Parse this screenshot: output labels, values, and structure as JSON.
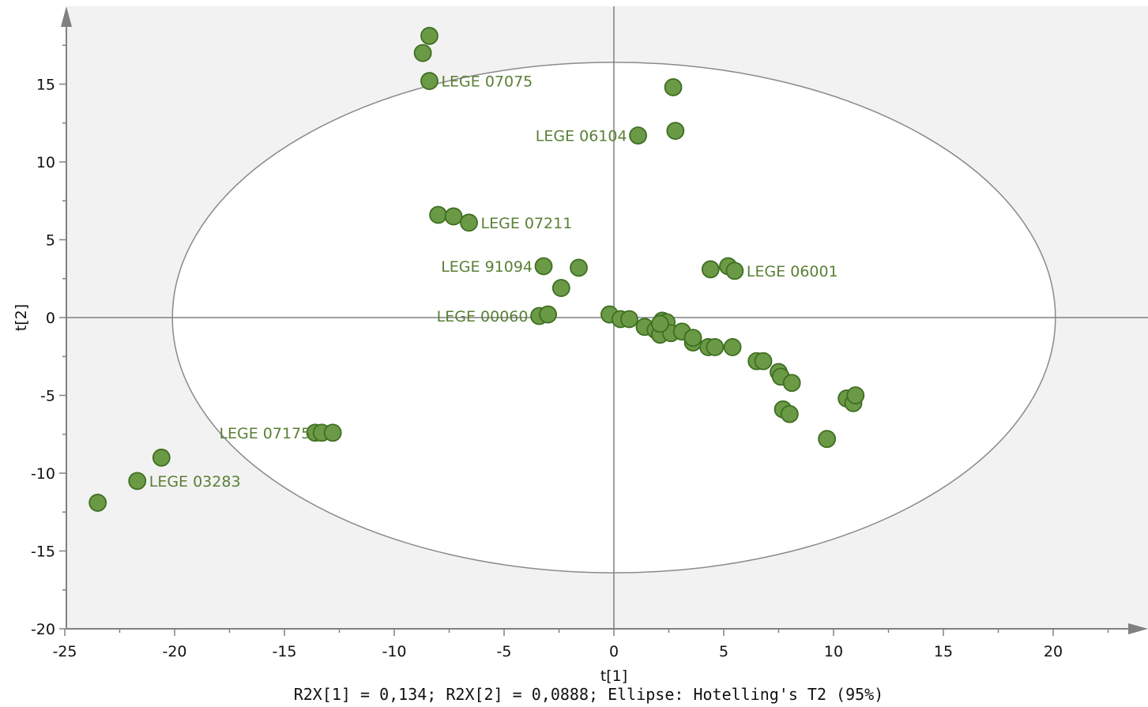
{
  "chart_data": {
    "type": "scatter",
    "title": "",
    "xlabel": "t[1]",
    "ylabel": "t[2]",
    "xlim": [
      -25,
      24
    ],
    "ylim": [
      -20,
      20
    ],
    "xticks": [
      -25,
      -20,
      -15,
      -10,
      -5,
      0,
      5,
      10,
      15,
      20
    ],
    "yticks": [
      -20,
      -15,
      -10,
      -5,
      0,
      5,
      10,
      15
    ],
    "grid": false,
    "caption": "R2X[1] = 0,134; R2X[2] = 0,0888; Ellipse: Hotelling's T2 (95%)",
    "ellipse": {
      "label": "Hotelling's T2 (95%)",
      "center": [
        0,
        0
      ],
      "rx": 20.1,
      "ry": 16.4
    },
    "colors": {
      "point_fill": "#6a9a45",
      "point_stroke": "#3f6e22",
      "label": "#5a7f35",
      "ellipse_fill": "#ffffff",
      "ellipse_stroke": "#8a8a8a",
      "plot_background": "#f2f2f2",
      "axis": "#808080"
    },
    "points": [
      {
        "x": -8.4,
        "y": 18.1
      },
      {
        "x": -8.7,
        "y": 17.0
      },
      {
        "x": -8.4,
        "y": 15.2,
        "label": "LEGE 07075"
      },
      {
        "x": 2.7,
        "y": 14.8
      },
      {
        "x": 1.1,
        "y": 11.7,
        "label": "LEGE 06104"
      },
      {
        "x": 2.8,
        "y": 12.0
      },
      {
        "x": -8.0,
        "y": 6.6
      },
      {
        "x": -7.3,
        "y": 6.5
      },
      {
        "x": -6.6,
        "y": 6.1,
        "label": "LEGE 07211"
      },
      {
        "x": -3.2,
        "y": 3.3,
        "label": "LEGE 91094"
      },
      {
        "x": -1.6,
        "y": 3.2
      },
      {
        "x": -2.4,
        "y": 1.9
      },
      {
        "x": 4.4,
        "y": 3.1
      },
      {
        "x": 5.2,
        "y": 3.3
      },
      {
        "x": 5.5,
        "y": 3.0,
        "label": "LEGE 06001"
      },
      {
        "x": -3.4,
        "y": 0.1,
        "label": "LEGE 00060"
      },
      {
        "x": -3.0,
        "y": 0.2
      },
      {
        "x": -0.2,
        "y": 0.2
      },
      {
        "x": 0.3,
        "y": -0.1
      },
      {
        "x": 0.7,
        "y": -0.1
      },
      {
        "x": 1.4,
        "y": -0.6
      },
      {
        "x": 1.9,
        "y": -0.8
      },
      {
        "x": 2.1,
        "y": -1.1
      },
      {
        "x": 2.2,
        "y": -0.2
      },
      {
        "x": 2.4,
        "y": -0.3
      },
      {
        "x": 2.6,
        "y": -1.0
      },
      {
        "x": 3.1,
        "y": -0.9
      },
      {
        "x": 2.1,
        "y": -0.4
      },
      {
        "x": 3.6,
        "y": -1.6
      },
      {
        "x": 3.6,
        "y": -1.3
      },
      {
        "x": 4.3,
        "y": -1.9
      },
      {
        "x": 4.6,
        "y": -1.9
      },
      {
        "x": 5.4,
        "y": -1.9
      },
      {
        "x": 6.5,
        "y": -2.8
      },
      {
        "x": 6.8,
        "y": -2.8
      },
      {
        "x": 7.5,
        "y": -3.5
      },
      {
        "x": 7.6,
        "y": -3.8
      },
      {
        "x": 8.1,
        "y": -4.2
      },
      {
        "x": 7.7,
        "y": -5.9
      },
      {
        "x": 8.0,
        "y": -6.2
      },
      {
        "x": 9.7,
        "y": -7.8
      },
      {
        "x": 10.6,
        "y": -5.2
      },
      {
        "x": 10.9,
        "y": -5.5
      },
      {
        "x": 11.0,
        "y": -5.0
      },
      {
        "x": -13.6,
        "y": -7.4
      },
      {
        "x": -13.3,
        "y": -7.4,
        "label": "LEGE 07175"
      },
      {
        "x": -12.8,
        "y": -7.4
      },
      {
        "x": -20.6,
        "y": -9.0
      },
      {
        "x": -21.7,
        "y": -10.5,
        "label": "LEGE 03283"
      },
      {
        "x": -23.5,
        "y": -11.9
      }
    ]
  }
}
